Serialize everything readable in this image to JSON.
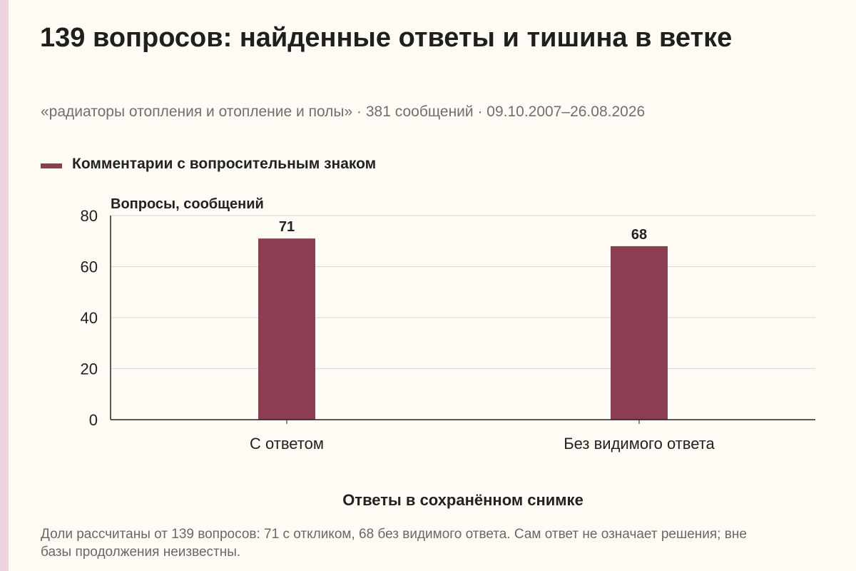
{
  "title": "139 вопросов: найденные ответы и тишина в ветке",
  "subtitle": "«радиаторы отопления и отопление и полы» · 381 сообщений · 09.10.2007–26.08.2026",
  "footnote": "Доли рассчитаны от 139 вопросов: 71 с откликом, 68 без видимого ответа. Сам ответ не означает решения; вне базы продолжения неизвестны.",
  "colors": {
    "background": "#fdfbf4",
    "accent_strip": "#ecd3dc",
    "bar": "#8b3d52",
    "grid": "#d9d9d9",
    "axis": "#222222"
  },
  "chart_data": {
    "type": "bar",
    "title": "",
    "xlabel": "Ответы в сохранённом снимке",
    "ylabel": "Вопросы, сообщений",
    "ylim": [
      0,
      80
    ],
    "yticks": [
      0,
      20,
      40,
      60,
      80
    ],
    "grid": true,
    "legend_position": "top-left",
    "categories": [
      "С ответом",
      "Без видимого ответа"
    ],
    "series": [
      {
        "name": "Комментарии с вопросительным знаком",
        "values": [
          71,
          68
        ],
        "color": "#8b3d52"
      }
    ]
  }
}
